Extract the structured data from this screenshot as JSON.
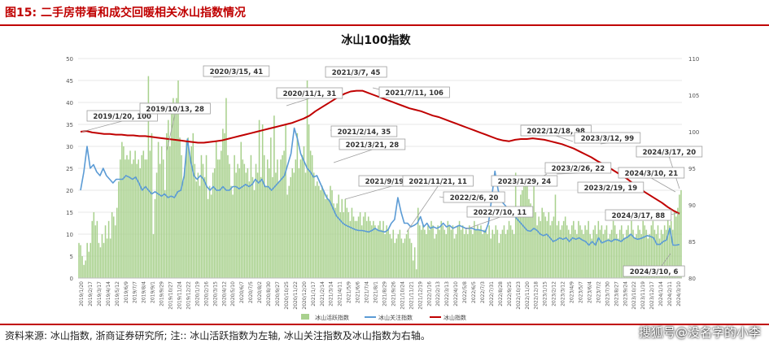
{
  "header": {
    "figure_caption": "图15:  二手房带看和成交回暖相关冰山指数情况"
  },
  "footer": {
    "source_note": "资料来源: 冰山指数, 浙商证券研究所; 注:: 冰山活跃指数为左轴, 冰山关注指数及冰山指数为右轴。",
    "watermark": "搜狐号@没名字的小李"
  },
  "colors": {
    "caption_red": "#c00000",
    "active_bar": "#a9d18e",
    "attention_line": "#5b9bd5",
    "index_line": "#c00000",
    "grid": "#e7e7e7"
  },
  "chart_data": {
    "type": "bar",
    "title": "冰山100指数",
    "grid": true,
    "legend_position": "bottom-center",
    "left_axis": {
      "range": [
        0,
        50
      ],
      "ticks": [
        0,
        5,
        10,
        15,
        20,
        25,
        30,
        35,
        40,
        45,
        50
      ]
    },
    "right_axis": {
      "range": [
        80,
        110
      ],
      "ticks": [
        80,
        85,
        90,
        95,
        100,
        105,
        110
      ]
    },
    "x_tick_labels": [
      "2019/1/20",
      "2019/2/17",
      "2019/3/17",
      "2019/4/14",
      "2019/5/12",
      "2019/6/9",
      "2019/7/7",
      "2019/8/4",
      "2019/9/1",
      "2019/9/29",
      "2019/10/27",
      "2019/11/24",
      "2019/12/22",
      "2020/1/19",
      "2020/2/16",
      "2020/3/15",
      "2020/4/12",
      "2020/5/10",
      "2020/6/7",
      "2020/7/5",
      "2020/8/2",
      "2020/8/30",
      "2020/9/27",
      "2020/10/25",
      "2020/11/22",
      "2020/12/20",
      "2021/1/17",
      "2021/2/14",
      "2021/3/14",
      "2021/4/11",
      "2021/5/9",
      "2021/6/6",
      "2021/7/4",
      "2021/8/1",
      "2021/8/29",
      "2021/9/26",
      "2021/10/24",
      "2021/11/21",
      "2021/12/19",
      "2022/1/16",
      "2022/2/13",
      "2022/3/13",
      "2022/4/10",
      "2022/5/8",
      "2022/6/5",
      "2022/7/3",
      "2022/7/31",
      "2022/8/28",
      "2022/9/25",
      "2022/10/23",
      "2022/11/20",
      "2022/12/18",
      "2023/1/15",
      "2023/2/12",
      "2023/3/12",
      "2023/4/9",
      "2023/5/7",
      "2023/6/4",
      "2023/7/2",
      "2023/7/30",
      "2023/8/27",
      "2023/9/24",
      "2023/10/22",
      "2023/11/19",
      "2023/12/17",
      "2024/1/14",
      "2024/2/11",
      "2024/3/10"
    ],
    "series": [
      {
        "name": "冰山活跃指数",
        "axis": "left",
        "kind": "bar",
        "values": [
          8,
          7.5,
          5,
          3,
          4,
          8,
          6,
          8,
          13,
          15,
          12,
          13,
          8,
          7,
          10,
          8,
          12,
          9,
          13,
          9,
          15,
          14,
          12,
          16,
          22,
          27,
          31,
          30,
          27,
          28,
          27,
          29,
          26,
          27,
          29,
          26,
          27,
          25,
          28,
          29,
          27,
          27,
          46,
          29,
          33,
          10,
          18,
          24,
          31,
          26,
          30,
          27,
          20,
          33,
          36,
          30,
          39,
          41,
          38,
          41,
          45,
          32,
          28,
          22,
          25,
          31,
          32,
          28,
          30,
          33,
          26,
          22,
          24,
          21,
          28,
          26,
          23,
          28,
          18,
          21,
          19,
          24,
          25,
          31,
          27,
          27,
          29,
          34,
          33,
          41,
          28,
          26,
          21,
          19,
          28,
          24,
          26,
          25,
          31,
          27,
          26,
          24,
          25,
          22,
          28,
          23,
          20,
          26,
          24,
          36,
          23,
          35,
          28,
          21,
          27,
          25,
          32,
          23,
          37,
          24,
          27,
          22,
          27,
          28,
          29,
          35,
          19,
          21,
          23,
          25,
          24,
          27,
          33,
          25,
          27,
          28,
          30,
          24,
          45,
          35,
          29,
          28,
          24,
          21,
          22,
          21,
          20,
          21,
          20,
          18,
          19,
          18,
          21,
          20,
          17,
          16,
          17,
          19,
          15,
          18,
          15,
          18,
          16,
          15,
          13,
          16,
          14,
          13,
          13,
          14,
          15,
          12,
          14,
          15,
          13,
          14,
          13,
          12,
          13,
          12,
          11,
          12,
          13,
          11,
          13,
          10,
          12,
          11,
          10,
          9,
          11,
          8,
          9,
          10,
          11,
          9,
          8,
          9,
          10,
          11,
          9,
          8,
          4,
          7,
          2,
          16,
          12,
          11,
          12,
          11,
          10,
          12,
          11,
          13,
          12,
          9,
          10,
          12,
          11,
          13,
          12,
          11,
          10,
          13,
          12,
          11,
          12,
          9,
          10,
          12,
          13,
          11,
          12,
          10,
          11,
          10,
          12,
          11,
          10,
          13,
          11,
          12,
          11,
          12,
          10,
          11,
          11,
          10,
          12,
          9,
          11,
          10,
          12,
          11,
          8,
          10,
          11,
          12,
          10,
          11,
          13,
          12,
          11,
          10,
          24,
          16,
          15,
          19,
          20,
          21,
          23,
          22,
          18,
          17,
          16,
          21,
          15,
          12,
          14,
          13,
          16,
          15,
          14,
          13,
          15,
          12,
          13,
          14,
          19,
          12,
          13,
          11,
          12,
          13,
          14,
          12,
          11,
          10,
          12,
          13,
          11,
          10,
          13,
          12,
          11,
          10,
          12,
          11,
          13,
          10,
          9,
          11,
          12,
          10,
          13,
          11,
          12,
          10,
          11,
          12,
          9,
          10,
          11,
          13,
          12,
          10,
          9,
          11,
          12,
          10,
          9,
          11,
          12,
          10,
          13,
          11,
          9,
          10,
          12,
          11,
          10,
          13,
          12,
          11,
          9,
          10,
          12,
          13,
          11,
          10,
          12,
          9,
          11,
          10,
          12,
          11,
          14,
          12,
          13,
          11,
          15,
          14,
          16,
          19,
          20
        ]
      },
      {
        "name": "冰山关注指数",
        "axis": "right",
        "kind": "line",
        "values": [
          92,
          94.5,
          98,
          95,
          95.5,
          94.5,
          94,
          95,
          94,
          93.5,
          93,
          93.5,
          93.5,
          93.5,
          94,
          93.8,
          93.5,
          93.8,
          93,
          92,
          92.5,
          92,
          91.5,
          91.8,
          91.5,
          91.2,
          91.5,
          91,
          91.2,
          91,
          91.8,
          92,
          94,
          99,
          96,
          94,
          93.5,
          94,
          93.5,
          92.5,
          92,
          92.5,
          92,
          92,
          92.5,
          92,
          92,
          92.5,
          92.5,
          92.2,
          92.5,
          92.8,
          92.5,
          92.8,
          93.5,
          93,
          93.5,
          92.5,
          92.5,
          92,
          92.5,
          93,
          93.5,
          94,
          95.5,
          97,
          100.5,
          99,
          97,
          96,
          95,
          94.5,
          93.8,
          94,
          93,
          92,
          91,
          90.5,
          89.5,
          88.5,
          88,
          87.5,
          87.2,
          87,
          86.8,
          86.6,
          86.5,
          86.5,
          86.4,
          86.3,
          86.5,
          86.8,
          86.5,
          86.4,
          86.3,
          86.6,
          87.5,
          88,
          91,
          89,
          87.5,
          87.5,
          87,
          87.2,
          87.5,
          88.4,
          87,
          87.5,
          86.8,
          87,
          86.8,
          87,
          87.5,
          87,
          87.2,
          86.8,
          87,
          87.2,
          87,
          86.8,
          86.8,
          86.8,
          86.6,
          86.6,
          86.5,
          86.3,
          87.5,
          91,
          94.6,
          92,
          90.5,
          90,
          89.5,
          89,
          88.5,
          88,
          87.5,
          87,
          86.5,
          86.4,
          86.8,
          86.5,
          86,
          85.8,
          86,
          85.5,
          85,
          85.2,
          85.5,
          85.3,
          85.5,
          85,
          85.5,
          85.3,
          85.5,
          85.2,
          85,
          84.5,
          85,
          84.5,
          85.5,
          84.8,
          85,
          85.2,
          85,
          85.3,
          85.2,
          85,
          85.4,
          85.6,
          86,
          85.5,
          85.3,
          85.4,
          85.6,
          85.8,
          85.7,
          85.5,
          84.6,
          84.6,
          85,
          85.2,
          86.8,
          84.5,
          84.5,
          84.6
        ]
      },
      {
        "name": "冰山指数",
        "axis": "right",
        "kind": "line",
        "values": [
          100,
          100.1,
          99.9,
          99.8,
          99.7,
          99.7,
          99.6,
          99.6,
          99.5,
          99.5,
          99.4,
          99.4,
          99.3,
          99.2,
          99.1,
          99,
          98.9,
          98.8,
          98.7,
          98.6,
          98.5,
          98.5,
          98.6,
          98.7,
          98.8,
          99,
          99.2,
          99.4,
          99.6,
          99.8,
          100,
          100.2,
          100.4,
          100.6,
          100.8,
          101,
          101.2,
          101.5,
          101.8,
          102.2,
          102.8,
          103.3,
          103.8,
          104.3,
          104.8,
          105.2,
          105.5,
          105.6,
          105.6,
          105.3,
          105,
          104.7,
          104.4,
          104.1,
          103.8,
          103.5,
          103.2,
          103,
          102.8,
          102.5,
          102.2,
          102,
          101.7,
          101.4,
          101.1,
          100.8,
          100.5,
          100.2,
          99.9,
          99.6,
          99.3,
          99,
          98.8,
          98.7,
          98.9,
          99,
          99,
          99.1,
          99,
          98.9,
          98.7,
          98.5,
          98.3,
          98,
          97.7,
          97.3,
          96.9,
          96.5,
          96,
          95.6,
          95.1,
          94.6,
          94.1,
          93.6,
          93,
          92.4,
          91.8,
          91.3,
          90.8,
          90.3,
          89.7,
          89.2,
          88.8
        ]
      }
    ],
    "annotations": [
      "2019/1/20, 100",
      "2019/10/13, 28",
      "2020/3/15, 41",
      "2020/11/1, 31",
      "2021/3/7, 45",
      "2021/7/11, 106",
      "2021/2/14, 35",
      "2021/3/21, 28",
      "2021/9/19, 11",
      "2021/11/21, 11",
      "2022/2/6, 20",
      "2022/7/10, 11",
      "2023/1/29, 24",
      "2023/2/26, 22",
      "2023/2/19, 19",
      "2022/12/18, 98",
      "2023/3/12, 99",
      "2024/3/17, 20",
      "2024/3/10, 21",
      "2024/3/17, 88",
      "2024/3/10, 6"
    ]
  }
}
